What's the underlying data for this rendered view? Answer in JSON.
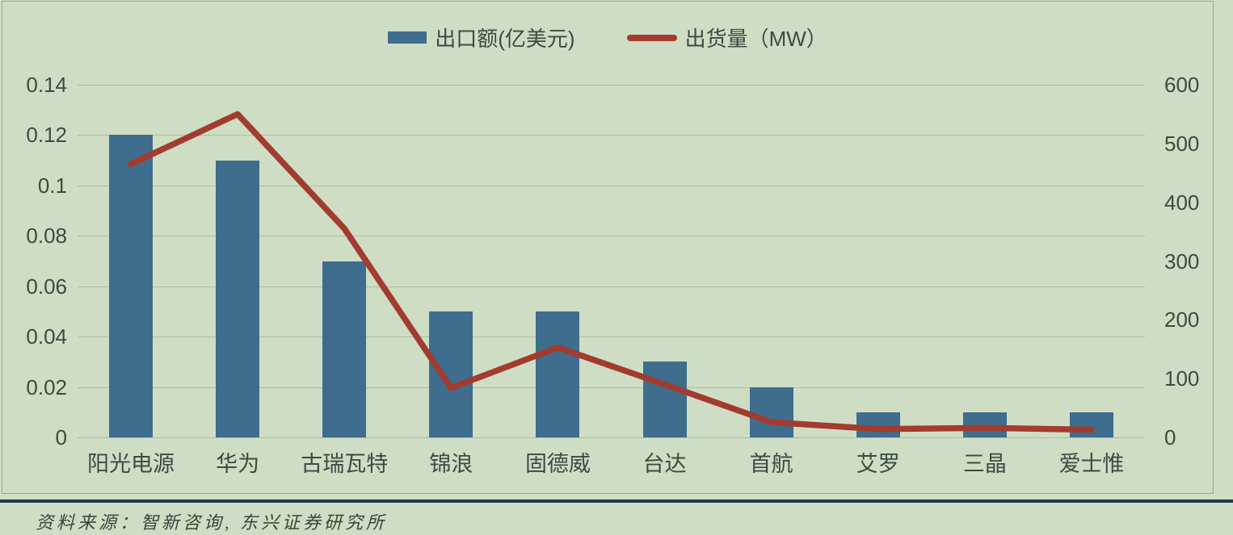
{
  "legend": {
    "bar_label": "出口额(亿美元)",
    "line_label": "出货量（MW）"
  },
  "footer": {
    "source": "资料来源：智新咨询, 东兴证券研究所"
  },
  "colors": {
    "background": "#cfddc4",
    "bar": "#3e6d8e",
    "line": "#a23c2f",
    "gridline": "#b0bca4",
    "axis_text": "#3f4a42",
    "divider": "#20394a",
    "panel_border": "#9ba794"
  },
  "chart_data": {
    "type": "bar",
    "subtype": "combo-bar-line",
    "categories": [
      "阳光电源",
      "华为",
      "古瑞瓦特",
      "锦浪",
      "固德威",
      "台达",
      "首航",
      "艾罗",
      "三晶",
      "爱士惟"
    ],
    "series": [
      {
        "name": "出口额(亿美元)",
        "type": "bar",
        "axis": "left",
        "color": "#3e6d8e",
        "values": [
          0.12,
          0.11,
          0.07,
          0.05,
          0.05,
          0.03,
          0.02,
          0.01,
          0.01,
          0.01
        ]
      },
      {
        "name": "出货量（MW）",
        "type": "line",
        "axis": "right",
        "color": "#a23c2f",
        "values": [
          465,
          550,
          355,
          84,
          153,
          90,
          26,
          14,
          16,
          13
        ]
      }
    ],
    "left_axis": {
      "min": 0,
      "max": 0.14,
      "step": 0.02,
      "tick_labels": [
        "0.14",
        "0.12",
        "0.1",
        "0.08",
        "0.06",
        "0.04",
        "0.02",
        "0"
      ]
    },
    "right_axis": {
      "min": 0,
      "max": 600,
      "step": 100,
      "tick_labels": [
        "600",
        "500",
        "400",
        "300",
        "200",
        "100",
        "0"
      ]
    },
    "grid": "horizontal, aligned to left axis",
    "legend_position": "top-center",
    "title": "",
    "xlabel": "",
    "ylabel_left": "出口额(亿美元)",
    "ylabel_right": "出货量（MW）"
  }
}
